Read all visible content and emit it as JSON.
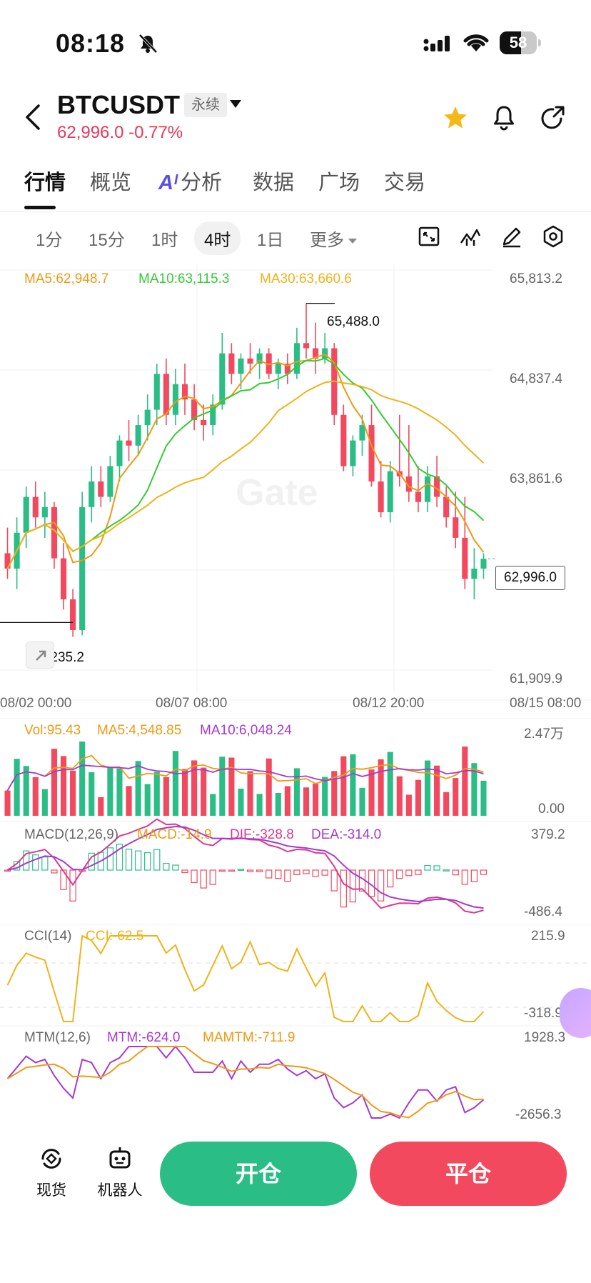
{
  "status_bar": {
    "time": "08:18",
    "battery": "58",
    "battery_level": 0.58
  },
  "header": {
    "symbol": "BTCUSDT",
    "contract_tag": "永续",
    "price": "62,996.0",
    "change": "-0.77%"
  },
  "tabs": [
    {
      "label": "行情",
      "active": true
    },
    {
      "label": "概览"
    },
    {
      "label": "分析",
      "badge": "Aᴵ"
    },
    {
      "label": "数据"
    },
    {
      "label": "广场"
    },
    {
      "label": "交易"
    }
  ],
  "intervals": [
    {
      "label": "1分"
    },
    {
      "label": "15分"
    },
    {
      "label": "1时"
    },
    {
      "label": "4时",
      "active": true
    },
    {
      "label": "1日"
    },
    {
      "label": "更多"
    }
  ],
  "main_indicators": {
    "ma5": "MA5:62,948.7",
    "ma10": "MA10:63,115.3",
    "ma30": "MA30:63,660.6"
  },
  "price_axis": [
    "65,813.2",
    "64,837.4",
    "63,861.6",
    "61,909.9"
  ],
  "time_axis": [
    "08/02 00:00",
    "08/07 08:00",
    "08/12 20:00",
    "08/15 08:00"
  ],
  "annotations": {
    "high": "65,488.0",
    "low": "62,235.2",
    "last_price": "62,996.0"
  },
  "volume": {
    "vol": "Vol:95.43",
    "ma5": "MA5:4,548.85",
    "ma10": "MA10:6,048.24",
    "axis_top": "2.47万",
    "axis_bottom": "0.00"
  },
  "macd": {
    "title": "MACD(12,26,9)",
    "macd": "MACD:-14.9",
    "dif": "DIF:-328.8",
    "dea": "DEA:-314.0",
    "axis_top": "379.2",
    "axis_bottom": "-486.4"
  },
  "cci": {
    "title": "CCI(14)",
    "cci": "CCI:-62.5",
    "axis_top": "215.9",
    "axis_bottom": "-318.9"
  },
  "mtm": {
    "title": "MTM(12,6)",
    "mtm": "MTM:-624.0",
    "mamtm": "MAMTM:-711.9",
    "axis_top": "1928.3",
    "axis_bottom": "-2656.3"
  },
  "bottom_bar": {
    "spot": "现货",
    "bot": "机器人",
    "open": "开仓",
    "close": "平仓"
  },
  "watermark": "Gate",
  "colors": {
    "up": "#2bbd86",
    "down": "#f2495f",
    "ma5": "#ee9a13",
    "ma10": "#33cc33",
    "ma30": "#efb31a"
  },
  "chart_data": {
    "type": "candlestick",
    "x_range": [
      "08/02 00:00",
      "08/15 08:00"
    ],
    "ylim": [
      61909.9,
      65813.2
    ],
    "candles_ohlc": [
      [
        63050,
        63300,
        62800,
        62900
      ],
      [
        62900,
        63400,
        62700,
        63250
      ],
      [
        63250,
        63700,
        63100,
        63600
      ],
      [
        63600,
        63750,
        63300,
        63400
      ],
      [
        63400,
        63650,
        63200,
        63500
      ],
      [
        63500,
        63550,
        62900,
        63000
      ],
      [
        63000,
        63150,
        62500,
        62600
      ],
      [
        62600,
        62700,
        62235,
        62300
      ],
      [
        62300,
        63650,
        62250,
        63500
      ],
      [
        63500,
        63900,
        63350,
        63750
      ],
      [
        63750,
        63900,
        63500,
        63600
      ],
      [
        63600,
        64000,
        63550,
        63900
      ],
      [
        63900,
        64200,
        63750,
        64150
      ],
      [
        64150,
        64350,
        63950,
        64100
      ],
      [
        64100,
        64400,
        64000,
        64300
      ],
      [
        64300,
        64600,
        64150,
        64450
      ],
      [
        64450,
        64900,
        64300,
        64800
      ],
      [
        64800,
        64950,
        64300,
        64400
      ],
      [
        64400,
        64850,
        64300,
        64700
      ],
      [
        64700,
        64900,
        64400,
        64550
      ],
      [
        64550,
        64700,
        64250,
        64350
      ],
      [
        64350,
        64500,
        64150,
        64300
      ],
      [
        64300,
        64600,
        64200,
        64500
      ],
      [
        64500,
        65200,
        64450,
        65000
      ],
      [
        65000,
        65100,
        64700,
        64800
      ],
      [
        64800,
        65000,
        64650,
        64950
      ],
      [
        64950,
        65100,
        64800,
        64900
      ],
      [
        64900,
        65050,
        64750,
        65000
      ],
      [
        65000,
        65050,
        64750,
        64800
      ],
      [
        64800,
        64950,
        64650,
        64900
      ],
      [
        64900,
        65000,
        64700,
        64800
      ],
      [
        64800,
        65250,
        64750,
        65100
      ],
      [
        65100,
        65488,
        64950,
        65050
      ],
      [
        65050,
        65300,
        64800,
        64950
      ],
      [
        64950,
        65200,
        64900,
        65050
      ],
      [
        65050,
        65100,
        64300,
        64400
      ],
      [
        64400,
        64500,
        63850,
        63900
      ],
      [
        63900,
        64200,
        63800,
        64150
      ],
      [
        64150,
        64400,
        64000,
        64300
      ],
      [
        64300,
        64500,
        63700,
        63750
      ],
      [
        63750,
        63950,
        63400,
        63450
      ],
      [
        63450,
        63950,
        63350,
        63850
      ],
      [
        63850,
        64400,
        63700,
        63800
      ],
      [
        63800,
        64300,
        63550,
        63650
      ],
      [
        63650,
        63900,
        63450,
        63550
      ],
      [
        63550,
        63900,
        63450,
        63800
      ],
      [
        63800,
        64000,
        63500,
        63600
      ],
      [
        63600,
        63700,
        63300,
        63400
      ],
      [
        63400,
        63650,
        63100,
        63200
      ],
      [
        63200,
        63600,
        62700,
        62800
      ],
      [
        62800,
        63100,
        62600,
        62900
      ],
      [
        62900,
        63050,
        62800,
        62996
      ]
    ],
    "series": [
      {
        "name": "MA5",
        "type": "line"
      },
      {
        "name": "MA10",
        "type": "line"
      },
      {
        "name": "MA30",
        "type": "line"
      }
    ]
  }
}
